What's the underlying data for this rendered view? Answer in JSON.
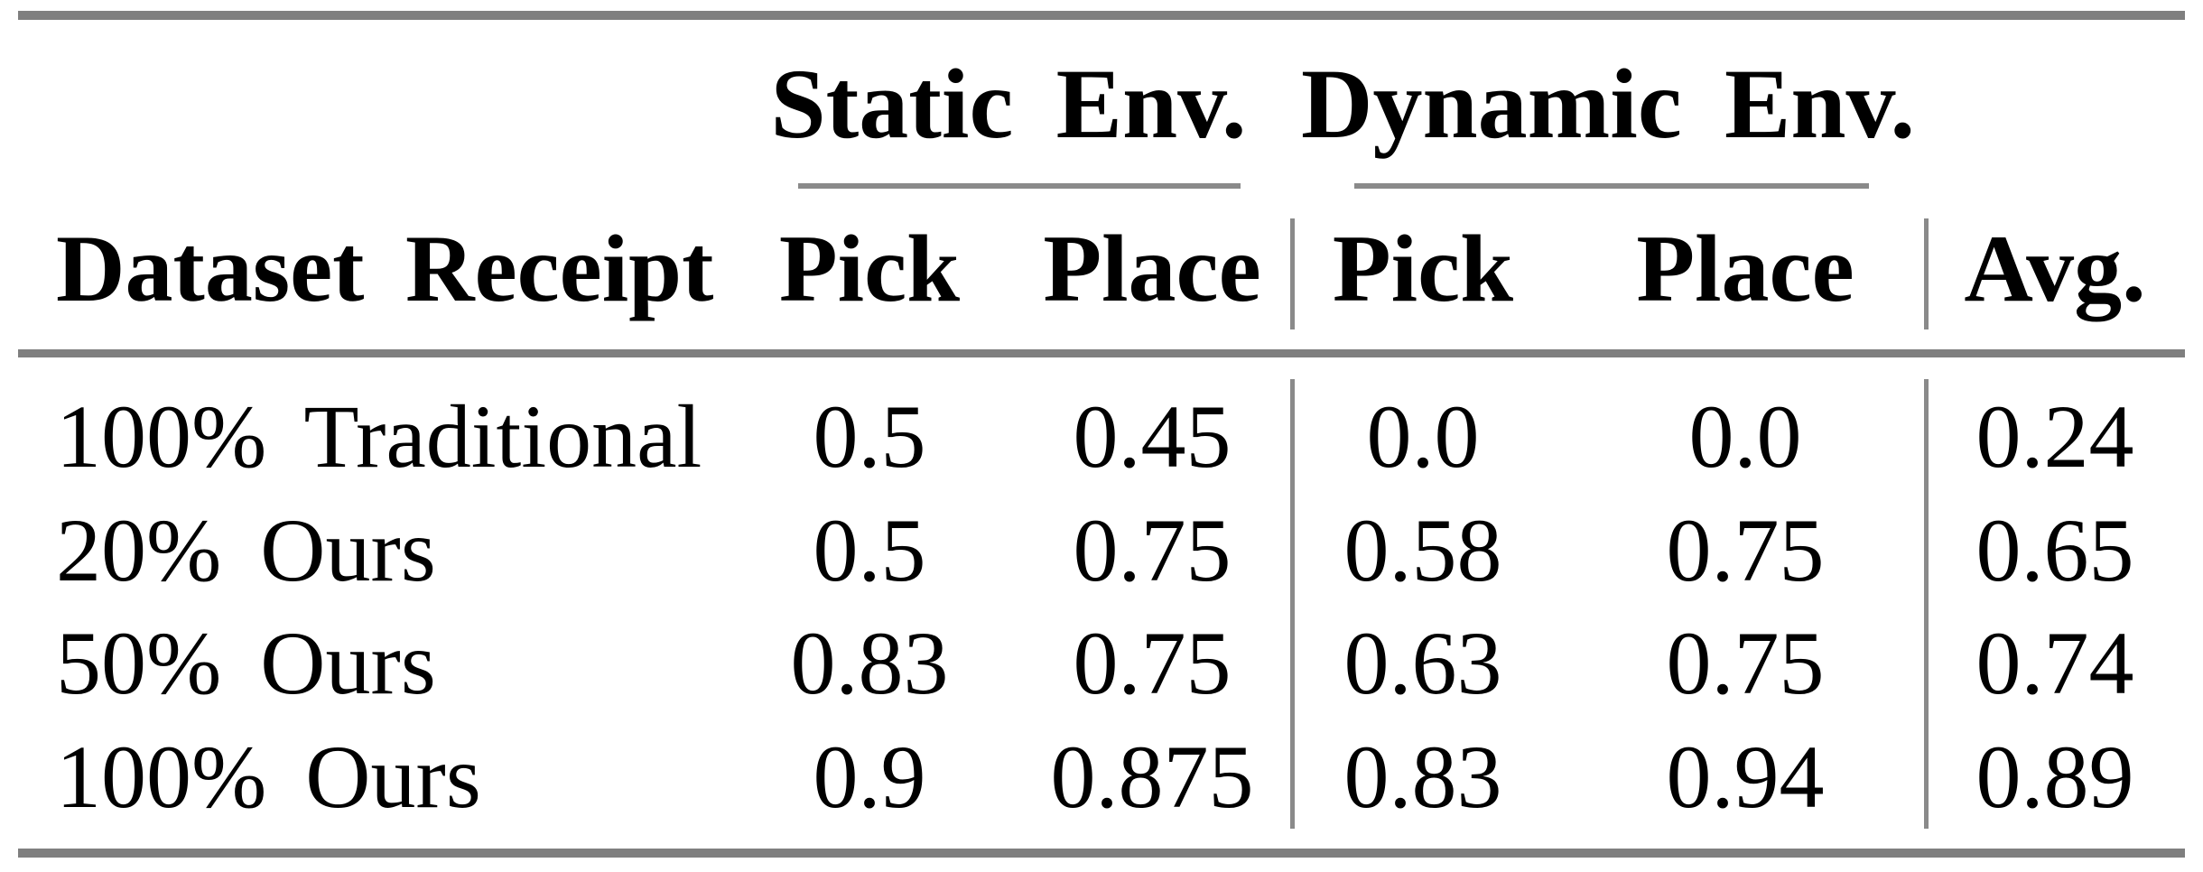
{
  "figure": {
    "background": "#ffffff",
    "text_color": "#000000",
    "rule_color_thick": "#7f7f7f",
    "rule_color_thin": "#8a8a8a"
  },
  "table": {
    "group_headers": [
      {
        "label": "Static Env.",
        "spans": [
          "Pick",
          "Place"
        ]
      },
      {
        "label": "Dynamic Env.",
        "spans": [
          "Pick",
          "Place"
        ]
      }
    ],
    "columns": [
      "Dataset Receipt",
      "Pick",
      "Place",
      "Pick",
      "Place",
      "Avg."
    ],
    "rows": [
      {
        "label": "100% Traditional",
        "values": [
          "0.5",
          "0.45",
          "0.0",
          "0.0",
          "0.24"
        ]
      },
      {
        "label": "20% Ours",
        "values": [
          "0.5",
          "0.75",
          "0.58",
          "0.75",
          "0.65"
        ]
      },
      {
        "label": "50% Ours",
        "values": [
          "0.83",
          "0.75",
          "0.63",
          "0.75",
          "0.74"
        ]
      },
      {
        "label": "100% Ours",
        "values": [
          "0.9",
          "0.875",
          "0.83",
          "0.94",
          "0.89"
        ]
      }
    ]
  },
  "chart_data": {
    "type": "table",
    "title": "",
    "column_groups": [
      {
        "label": "Static Env.",
        "columns": [
          "Pick",
          "Place"
        ]
      },
      {
        "label": "Dynamic Env.",
        "columns": [
          "Pick",
          "Place"
        ]
      }
    ],
    "columns": [
      "Dataset Receipt",
      "Static Pick",
      "Static Place",
      "Dynamic Pick",
      "Dynamic Place",
      "Avg."
    ],
    "rows": [
      [
        "100% Traditional",
        0.5,
        0.45,
        0.0,
        0.0,
        0.24
      ],
      [
        "20% Ours",
        0.5,
        0.75,
        0.58,
        0.75,
        0.65
      ],
      [
        "50% Ours",
        0.83,
        0.75,
        0.63,
        0.75,
        0.74
      ],
      [
        "100% Ours",
        0.9,
        0.875,
        0.83,
        0.94,
        0.89
      ]
    ]
  }
}
